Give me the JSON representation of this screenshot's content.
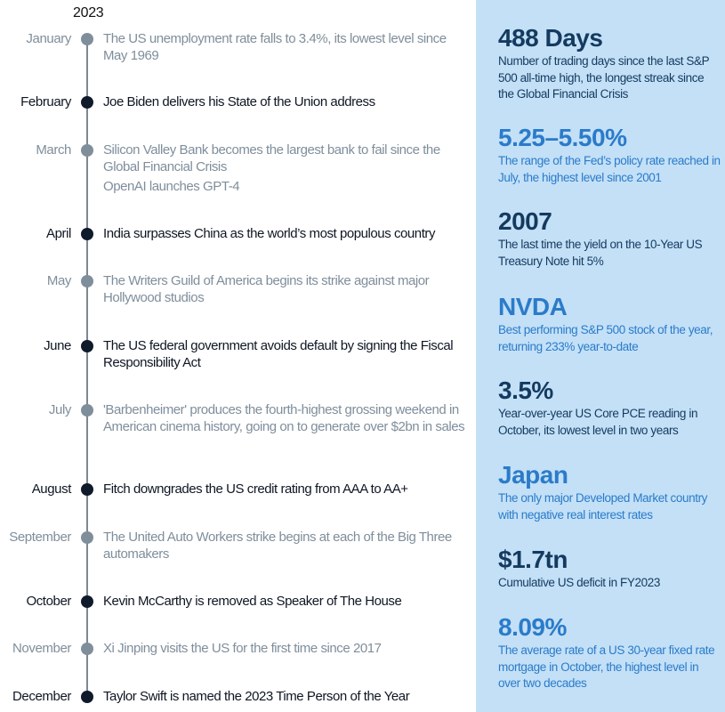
{
  "year": "2023",
  "timeline": [
    {
      "month": "January",
      "events": [
        "The US unemployment rate falls to 3.4%, its lowest level since May 1969"
      ]
    },
    {
      "month": "February",
      "events": [
        "Joe Biden delivers his State of the Union address"
      ]
    },
    {
      "month": "March",
      "events": [
        "Silicon Valley Bank becomes the largest bank to fail since the Global Financial Crisis",
        "OpenAI launches GPT-4"
      ]
    },
    {
      "month": "April",
      "events": [
        "India surpasses China as the world’s most populous country"
      ]
    },
    {
      "month": "May",
      "events": [
        "The Writers Guild of America begins its strike against major Hollywood studios"
      ]
    },
    {
      "month": "June",
      "events": [
        "The US federal government avoids default by signing the Fiscal Responsibility Act"
      ]
    },
    {
      "month": "July",
      "events": [
        "'Barbenheimer' produces the fourth-highest grossing weekend in American cinema history, going on to generate over $2bn in sales"
      ]
    },
    {
      "month": "August",
      "events": [
        "Fitch downgrades the US credit rating from AAA to AA+"
      ]
    },
    {
      "month": "September",
      "events": [
        "The United Auto Workers strike begins at each of the Big Three automakers"
      ]
    },
    {
      "month": "October",
      "events": [
        "Kevin McCarthy is removed as Speaker of The House"
      ]
    },
    {
      "month": "November",
      "events": [
        "Xi Jinping visits the US for the first time since 2017"
      ]
    },
    {
      "month": "December",
      "events": [
        "Taylor Swift is named the 2023 Time Person of the Year"
      ]
    }
  ],
  "stats": [
    {
      "headline": "488 Days",
      "description": "Number of trading days since the last S&P 500 all-time high, the longest streak since the Global Financial Crisis"
    },
    {
      "headline": "5.25–5.50%",
      "description": "The range of the Fed’s policy rate reached in July, the highest level since 2001"
    },
    {
      "headline": "2007",
      "description": "The last time the yield on the 10-Year US Treasury Note hit 5%"
    },
    {
      "headline": "NVDA",
      "description": "Best performing S&P 500 stock of the year, returning 233% year-to-date"
    },
    {
      "headline": "3.5%",
      "description": "Year-over-year US Core PCE reading in October, its lowest level in two years"
    },
    {
      "headline": "Japan",
      "description": "The only major Developed Market country with negative real interest rates"
    },
    {
      "headline": "$1.7tn",
      "description": "Cumulative US deficit in FY2023"
    },
    {
      "headline": "8.09%",
      "description": "The average rate of a US 30-year fixed rate mortgage in October, the highest level in over two decades"
    }
  ],
  "colors": {
    "panel": "#c3e0f7",
    "navy": "#143a5f",
    "blue": "#2b7bc9",
    "grey": "#7f8e9b",
    "dark": "#0f1623"
  }
}
